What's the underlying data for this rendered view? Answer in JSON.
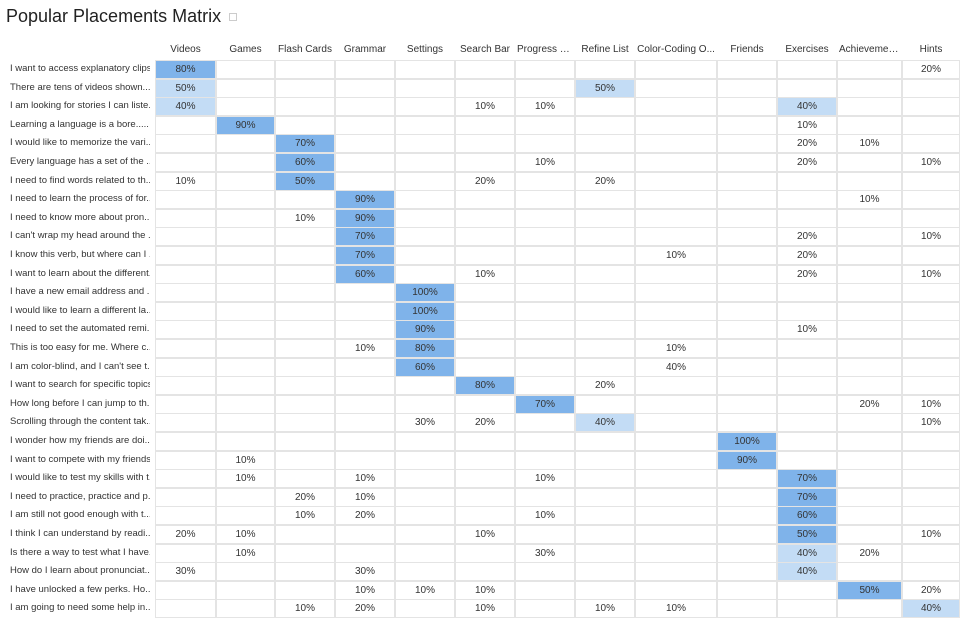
{
  "title": "Popular Placements Matrix",
  "colors": {
    "strong": "#7fb3ea",
    "light": "#c3dcf5",
    "grid": "#e4e4e4"
  },
  "chart_data": {
    "type": "heatmap",
    "columns": [
      "Videos",
      "Games",
      "Flash Cards",
      "Grammar",
      "Settings",
      "Search Bar",
      "Progress Bar",
      "Refine List",
      "Color-Coding O...",
      "Friends",
      "Exercises",
      "Achievements",
      "Hints"
    ],
    "rows": [
      {
        "label": "I want to access explanatory clips",
        "values": [
          80,
          null,
          null,
          null,
          null,
          null,
          null,
          null,
          null,
          null,
          null,
          null,
          20
        ],
        "highlight": [
          0
        ]
      },
      {
        "label": "There are tens of videos shown....",
        "values": [
          50,
          null,
          null,
          null,
          null,
          null,
          null,
          50,
          null,
          null,
          null,
          null,
          null
        ],
        "highlight": [
          0,
          7
        ]
      },
      {
        "label": "I am looking for stories I can liste...",
        "values": [
          40,
          null,
          null,
          null,
          null,
          10,
          10,
          null,
          null,
          null,
          40,
          null,
          null
        ],
        "highlight": [
          0,
          10
        ]
      },
      {
        "label": "Learning a language is a bore.....",
        "values": [
          null,
          90,
          null,
          null,
          null,
          null,
          null,
          null,
          null,
          null,
          10,
          null,
          null
        ],
        "highlight": [
          1
        ]
      },
      {
        "label": "I would like to memorize the vari...",
        "values": [
          null,
          null,
          70,
          null,
          null,
          null,
          null,
          null,
          null,
          null,
          20,
          10,
          null
        ],
        "highlight": [
          2
        ]
      },
      {
        "label": "Every language has a set of the ...",
        "values": [
          null,
          null,
          60,
          null,
          null,
          null,
          10,
          null,
          null,
          null,
          20,
          null,
          10
        ],
        "highlight": [
          2
        ]
      },
      {
        "label": "I need to find words related to th...",
        "values": [
          10,
          null,
          50,
          null,
          null,
          20,
          null,
          20,
          null,
          null,
          null,
          null,
          null
        ],
        "highlight": [
          2
        ]
      },
      {
        "label": "I need to learn the process of for...",
        "values": [
          null,
          null,
          null,
          90,
          null,
          null,
          null,
          null,
          null,
          null,
          null,
          10,
          null
        ],
        "highlight": [
          3
        ]
      },
      {
        "label": "I need to know more about pron...",
        "values": [
          null,
          null,
          10,
          90,
          null,
          null,
          null,
          null,
          null,
          null,
          null,
          null,
          null
        ],
        "highlight": [
          3
        ]
      },
      {
        "label": "I can't wrap my head around the ...",
        "values": [
          null,
          null,
          null,
          70,
          null,
          null,
          null,
          null,
          null,
          null,
          20,
          null,
          10
        ],
        "highlight": [
          3
        ]
      },
      {
        "label": "I know this verb, but where can I ...",
        "values": [
          null,
          null,
          null,
          70,
          null,
          null,
          null,
          null,
          10,
          null,
          20,
          null,
          null
        ],
        "highlight": [
          3
        ]
      },
      {
        "label": "I want to learn about the different...",
        "values": [
          null,
          null,
          null,
          60,
          null,
          10,
          null,
          null,
          null,
          null,
          20,
          null,
          10
        ],
        "highlight": [
          3
        ]
      },
      {
        "label": "I have a new email address and ...",
        "values": [
          null,
          null,
          null,
          null,
          100,
          null,
          null,
          null,
          null,
          null,
          null,
          null,
          null
        ],
        "highlight": [
          4
        ]
      },
      {
        "label": "I would like to learn a different la...",
        "values": [
          null,
          null,
          null,
          null,
          100,
          null,
          null,
          null,
          null,
          null,
          null,
          null,
          null
        ],
        "highlight": [
          4
        ]
      },
      {
        "label": "I need to set the automated remi...",
        "values": [
          null,
          null,
          null,
          null,
          90,
          null,
          null,
          null,
          null,
          null,
          10,
          null,
          null
        ],
        "highlight": [
          4
        ]
      },
      {
        "label": "This is too easy for me. Where c...",
        "values": [
          null,
          null,
          null,
          10,
          80,
          null,
          null,
          null,
          10,
          null,
          null,
          null,
          null
        ],
        "highlight": [
          4
        ]
      },
      {
        "label": "I am color-blind, and I can't see t...",
        "values": [
          null,
          null,
          null,
          null,
          60,
          null,
          null,
          null,
          40,
          null,
          null,
          null,
          null
        ],
        "highlight": [
          4
        ]
      },
      {
        "label": "I want to search for specific topics",
        "values": [
          null,
          null,
          null,
          null,
          null,
          80,
          null,
          20,
          null,
          null,
          null,
          null,
          null
        ],
        "highlight": [
          5
        ]
      },
      {
        "label": "How long before I can jump to th...",
        "values": [
          null,
          null,
          null,
          null,
          null,
          null,
          70,
          null,
          null,
          null,
          null,
          20,
          10
        ],
        "highlight": [
          6
        ]
      },
      {
        "label": "Scrolling through the content tak...",
        "values": [
          null,
          null,
          null,
          null,
          30,
          20,
          null,
          40,
          null,
          null,
          null,
          null,
          10
        ],
        "highlight": [
          7
        ]
      },
      {
        "label": "I wonder how my friends are doi...",
        "values": [
          null,
          null,
          null,
          null,
          null,
          null,
          null,
          null,
          null,
          100,
          null,
          null,
          null
        ],
        "highlight": [
          9
        ]
      },
      {
        "label": "I want to compete with my friends",
        "values": [
          null,
          10,
          null,
          null,
          null,
          null,
          null,
          null,
          null,
          90,
          null,
          null,
          null
        ],
        "highlight": [
          9
        ]
      },
      {
        "label": "I would like to test my skills with t...",
        "values": [
          null,
          10,
          null,
          10,
          null,
          null,
          10,
          null,
          null,
          null,
          70,
          null,
          null
        ],
        "highlight": [
          10
        ]
      },
      {
        "label": "I need to practice, practice and p...",
        "values": [
          null,
          null,
          20,
          10,
          null,
          null,
          null,
          null,
          null,
          null,
          70,
          null,
          null
        ],
        "highlight": [
          10
        ]
      },
      {
        "label": "I am still not good enough with t...",
        "values": [
          null,
          null,
          10,
          20,
          null,
          null,
          10,
          null,
          null,
          null,
          60,
          null,
          null
        ],
        "highlight": [
          10
        ]
      },
      {
        "label": "I think I can understand by readi...",
        "values": [
          20,
          10,
          null,
          null,
          null,
          10,
          null,
          null,
          null,
          null,
          50,
          null,
          10
        ],
        "highlight": [
          10
        ]
      },
      {
        "label": "Is there a way to test what I have...",
        "values": [
          null,
          10,
          null,
          null,
          null,
          null,
          30,
          null,
          null,
          null,
          40,
          20,
          null
        ],
        "highlight": [
          10
        ]
      },
      {
        "label": "How do I learn about pronunciat...",
        "values": [
          30,
          null,
          null,
          30,
          null,
          null,
          null,
          null,
          null,
          null,
          40,
          null,
          null
        ],
        "highlight": [
          10
        ]
      },
      {
        "label": "I have unlocked a few perks. Ho...",
        "values": [
          null,
          null,
          null,
          10,
          10,
          10,
          null,
          null,
          null,
          null,
          null,
          50,
          20
        ],
        "highlight": [
          11
        ]
      },
      {
        "label": "I am going to need some help in...",
        "values": [
          null,
          null,
          10,
          20,
          null,
          10,
          null,
          10,
          10,
          null,
          null,
          null,
          40
        ],
        "highlight": [
          12
        ]
      }
    ]
  }
}
